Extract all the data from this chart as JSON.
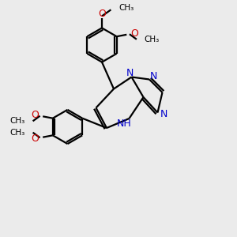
{
  "bg_color": "#ebebeb",
  "bond_color": "#000000",
  "n_color": "#0000cc",
  "o_color": "#cc0000",
  "line_width": 1.6,
  "font_size": 8.5,
  "figsize": [
    3.0,
    3.0
  ],
  "dpi": 100,
  "xlim": [
    0,
    10
  ],
  "ylim": [
    0,
    10
  ]
}
